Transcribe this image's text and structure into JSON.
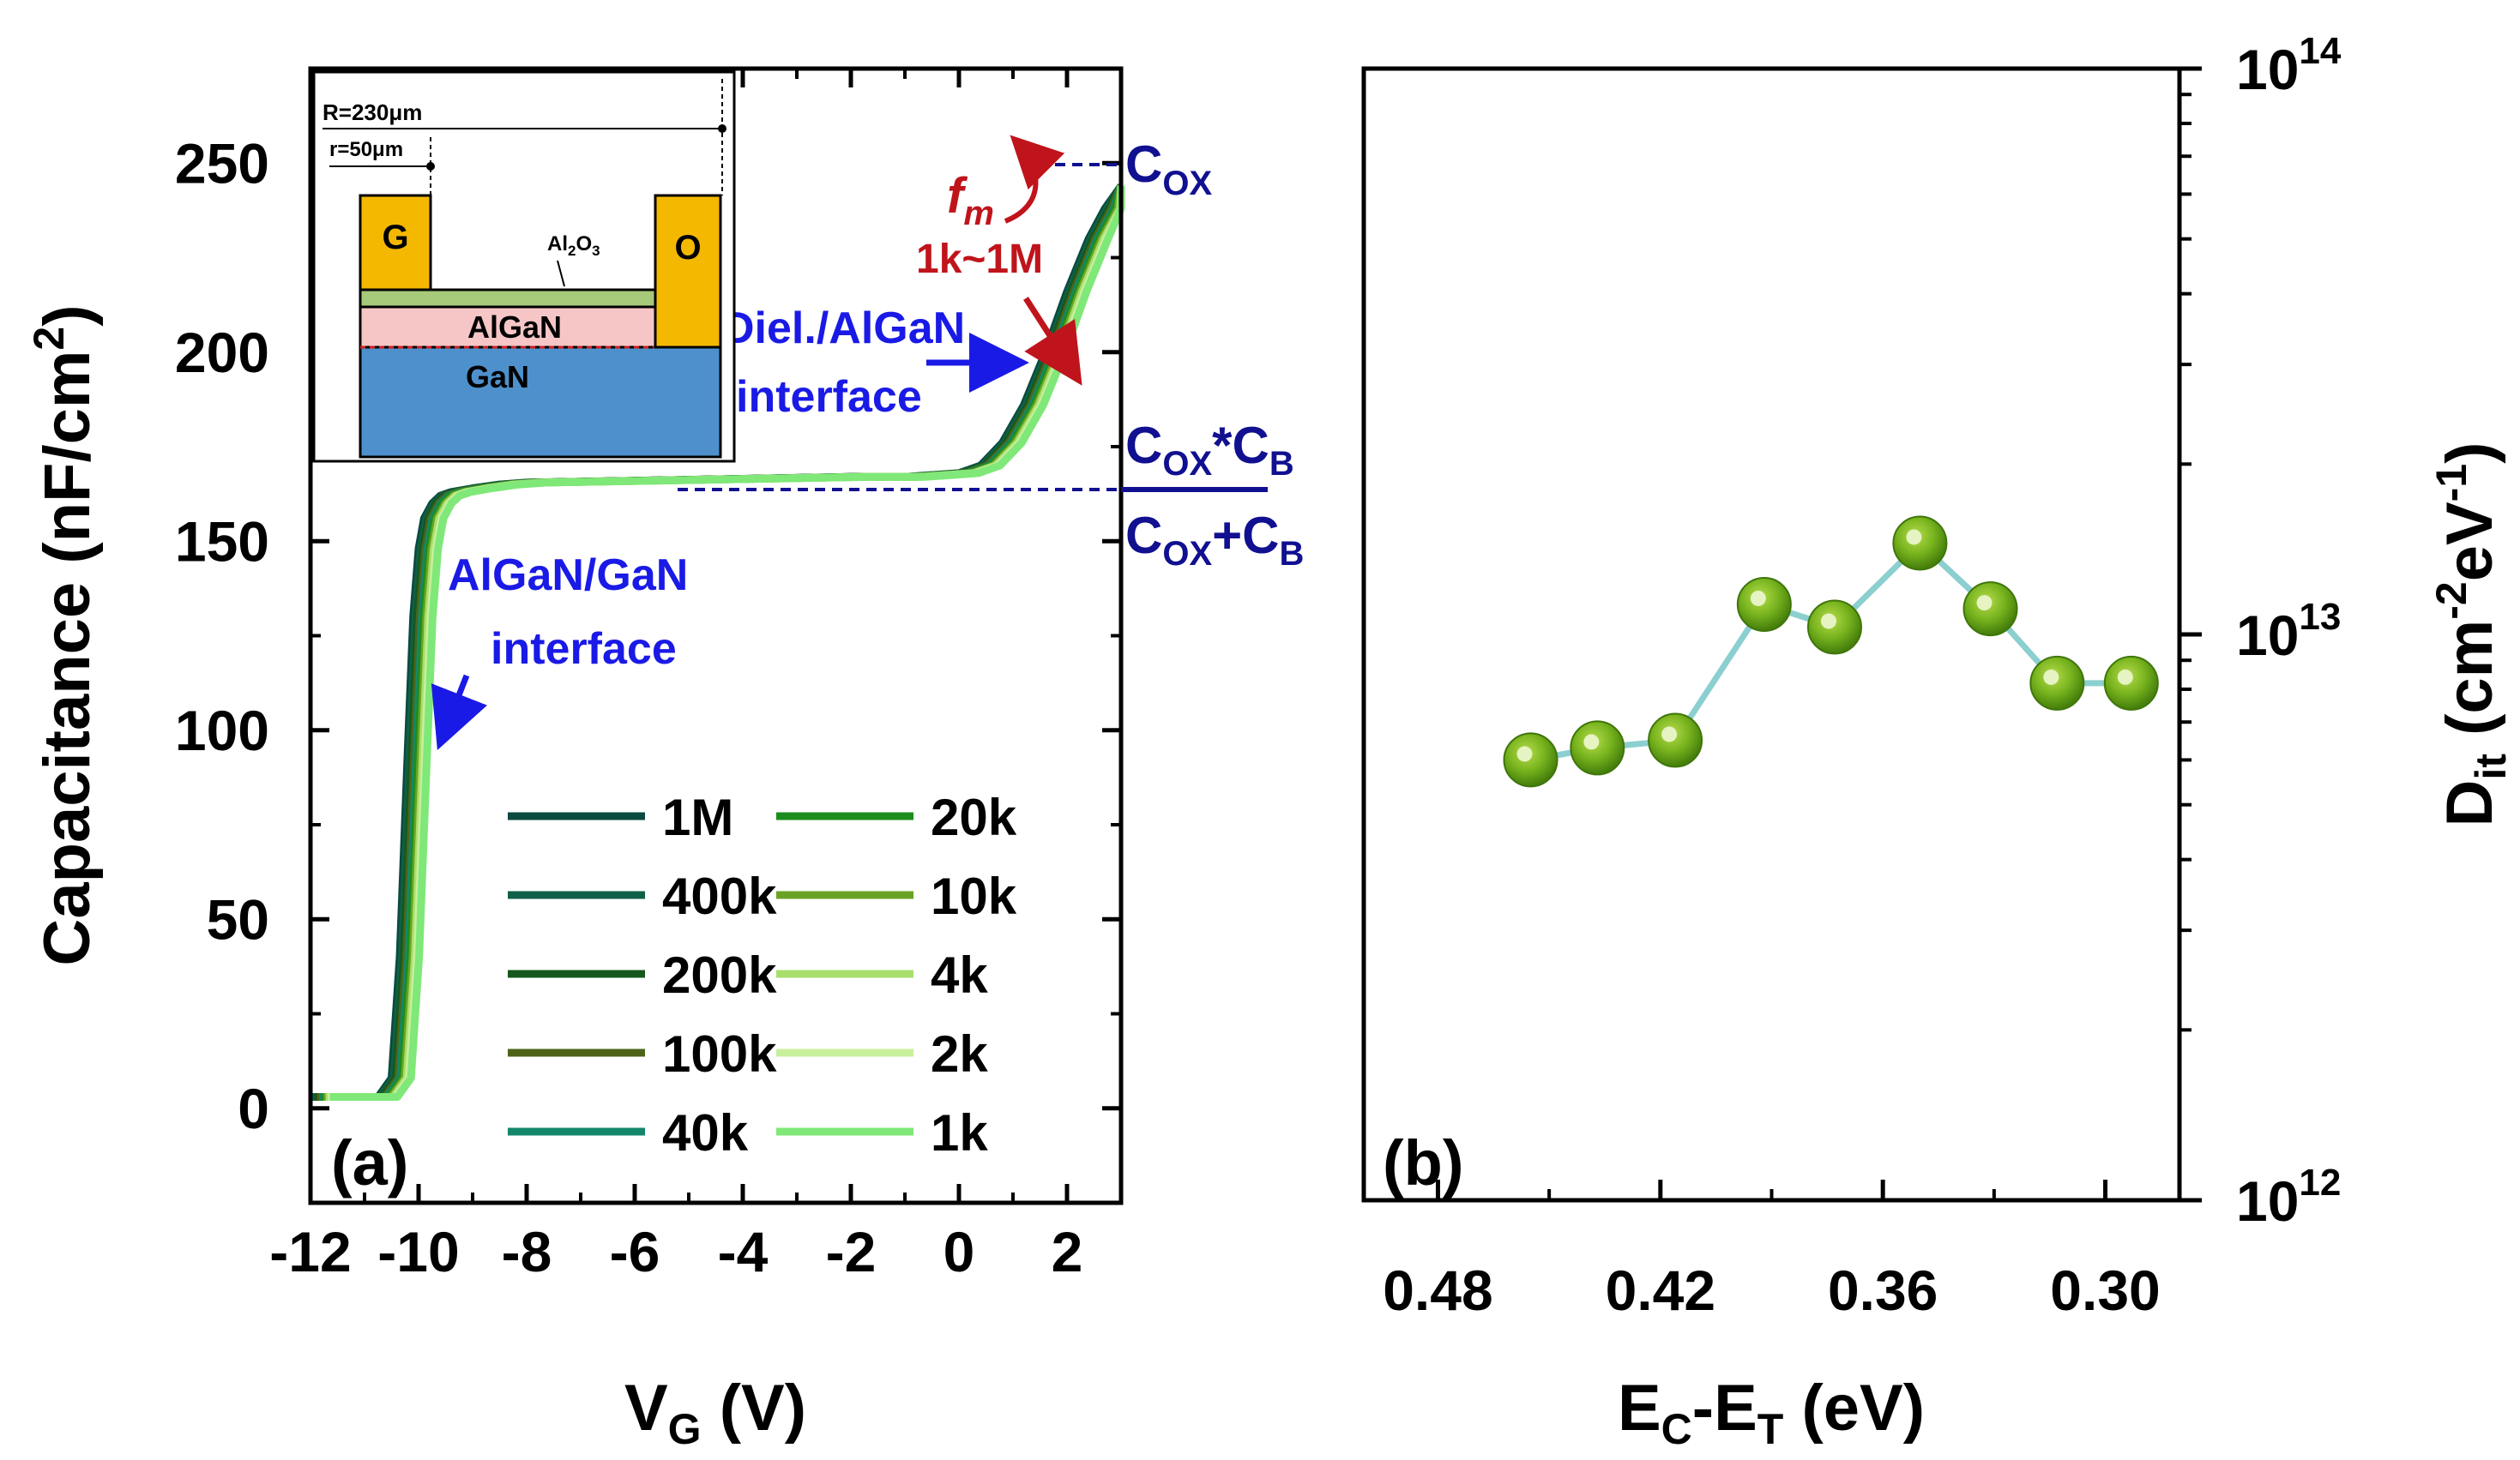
{
  "colors": {
    "axis": "#000000",
    "annotation_blue": "#1a1ae6",
    "annotation_red": "#c0141c",
    "cox_navy": "#101090",
    "substrate_gan": "#4e90cc",
    "algan_layer": "#f6c6c6",
    "al2o3_layer": "#a7c97a",
    "contact_gold": "#f5b800",
    "dit_marker": "#6aa518",
    "dit_line": "#8ccfd0"
  },
  "chart_data": [
    {
      "panel": "(a)",
      "type": "line",
      "title": "",
      "xlabel": "V",
      "xlabel_sub": "G",
      "xlabel_unit": " (V)",
      "ylabel": "Capacitance (nF/cm",
      "ylabel_sup": "2",
      "ylabel_end": ")",
      "xlim": [
        -12,
        3
      ],
      "ylim": [
        -25,
        275
      ],
      "xticks": [
        -12,
        -10,
        -8,
        -6,
        -4,
        -2,
        0,
        2
      ],
      "xtick_labels": [
        "-12",
        "-10",
        "-8",
        "-6",
        "-4",
        "-2",
        "0",
        "2"
      ],
      "yticks": [
        0,
        50,
        100,
        150,
        200,
        250
      ],
      "ytick_labels": [
        "0",
        "50",
        "100",
        "150",
        "200",
        "250"
      ],
      "x": [
        -12,
        -11.5,
        -11.0,
        -10.75,
        -10.5,
        -10.35,
        -10.2,
        -10.1,
        -10.0,
        -9.9,
        -9.75,
        -9.6,
        -9.4,
        -9.0,
        -8.5,
        -8,
        -6,
        -4,
        -2,
        -1,
        -0.5,
        0,
        0.4,
        0.8,
        1.2,
        1.6,
        2.0,
        2.4,
        2.7,
        3.0
      ],
      "series": [
        {
          "name": "1M",
          "color": "#0b4a3f",
          "shift": 0.0,
          "values": [
            3,
            3,
            3,
            3,
            8,
            40,
            95,
            130,
            148,
            156,
            160,
            162,
            163,
            164,
            165,
            165.5,
            166,
            166.5,
            167,
            167,
            167.5,
            168,
            170,
            176,
            186,
            200,
            216,
            230,
            238,
            244
          ]
        },
        {
          "name": "400k",
          "color": "#0f6048",
          "shift": 0.04,
          "values": [
            3,
            3,
            3,
            3,
            8,
            40,
            95,
            130,
            148,
            156,
            160,
            162,
            163,
            164,
            165,
            165.5,
            166,
            166.5,
            167,
            167,
            167.5,
            168,
            170,
            176,
            186,
            200,
            216,
            230,
            238,
            244
          ]
        },
        {
          "name": "200k",
          "color": "#15581d",
          "shift": 0.08,
          "values": [
            3,
            3,
            3,
            3,
            8,
            40,
            95,
            130,
            148,
            156,
            160,
            162,
            163,
            164,
            165,
            165.5,
            166,
            166.5,
            167,
            167,
            167.5,
            168,
            170,
            176,
            186,
            200,
            216,
            230,
            238,
            244
          ]
        },
        {
          "name": "100k",
          "color": "#4d6418",
          "shift": 0.12,
          "values": [
            3,
            3,
            3,
            3,
            8,
            40,
            95,
            130,
            148,
            156,
            160,
            162,
            163,
            164,
            165,
            165.5,
            166,
            166.5,
            167,
            167,
            167.5,
            168,
            170,
            176,
            186,
            200,
            216,
            230,
            238,
            244
          ]
        },
        {
          "name": "40k",
          "color": "#14876a",
          "shift": 0.16,
          "values": [
            3,
            3,
            3,
            3,
            8,
            40,
            95,
            130,
            148,
            156,
            160,
            162,
            163,
            164,
            165,
            165.5,
            166,
            166.5,
            167,
            167,
            167.5,
            168,
            170,
            176,
            186,
            200,
            216,
            230,
            238,
            244
          ]
        },
        {
          "name": "20k",
          "color": "#1c8d1c",
          "shift": 0.2,
          "values": [
            3,
            3,
            3,
            3,
            8,
            40,
            95,
            130,
            148,
            156,
            160,
            162,
            163,
            164,
            165,
            165.5,
            166,
            166.5,
            167,
            167,
            167.5,
            168,
            170,
            176,
            186,
            200,
            216,
            230,
            238,
            244
          ]
        },
        {
          "name": "10k",
          "color": "#6aa323",
          "shift": 0.24,
          "values": [
            3,
            3,
            3,
            3,
            8,
            40,
            95,
            130,
            148,
            156,
            160,
            162,
            163,
            164,
            165,
            165.5,
            166,
            166.5,
            167,
            167,
            167.5,
            168,
            170,
            176,
            186,
            200,
            216,
            230,
            238,
            244
          ]
        },
        {
          "name": "4k",
          "color": "#a8df6c",
          "shift": 0.28,
          "values": [
            3,
            3,
            3,
            3,
            8,
            40,
            95,
            130,
            148,
            156,
            160,
            162,
            163,
            164,
            165,
            165.5,
            166,
            166.5,
            167,
            167,
            167.5,
            168,
            170,
            176,
            186,
            200,
            216,
            230,
            238,
            244
          ]
        },
        {
          "name": "2k",
          "color": "#c8ef9c",
          "shift": 0.32,
          "values": [
            3,
            3,
            3,
            3,
            8,
            40,
            95,
            130,
            148,
            156,
            160,
            162,
            163,
            164,
            165,
            165.5,
            166,
            166.5,
            167,
            167,
            167.5,
            168,
            170,
            176,
            186,
            200,
            216,
            230,
            238,
            244
          ]
        },
        {
          "name": "1k",
          "color": "#7fe878",
          "shift": 0.36,
          "values": [
            3,
            3,
            3,
            3,
            8,
            40,
            95,
            130,
            148,
            156,
            160,
            162,
            163,
            164,
            165,
            165.5,
            166,
            166.5,
            167,
            167,
            167.5,
            168,
            170,
            176,
            186,
            200,
            216,
            230,
            238,
            244
          ]
        }
      ],
      "annotations": {
        "cox": "C",
        "cox_sub": "OX",
        "cox_level": 250,
        "series_num_c1": "C",
        "series_num_s1": "OX",
        "series_num_mid": "*C",
        "series_num_s2": "B",
        "series_den_c1": "C",
        "series_den_s1": "OX",
        "series_den_mid": "+C",
        "series_den_s2": "B",
        "series_level": 165,
        "fm": "f",
        "fm_sub": "m",
        "freq_range": "1k~1M",
        "diel_line1": "Diel./AlGaN",
        "diel_line2": "interface",
        "algan_line1": "AlGaN/GaN",
        "algan_line2": "interface",
        "panel_label": "(a)"
      },
      "inset": {
        "R_label": "R=230μm",
        "r_label": "r=50μm",
        "gate": "G",
        "ohmic": "O",
        "oxide_main": "Al",
        "oxide_sub1": "2",
        "oxide_mid": "O",
        "oxide_sub2": "3",
        "barrier": "AlGaN",
        "substrate": "GaN"
      }
    },
    {
      "panel": "(b)",
      "type": "scatter",
      "title": "",
      "xlabel": "E",
      "xlabel_sub1": "C",
      "xlabel_mid": "-E",
      "xlabel_sub2": "T",
      "xlabel_unit": " (eV)",
      "ylabel": "D",
      "ylabel_sub": "it",
      "ylabel_unit": " (cm",
      "ylabel_sup1": "-2",
      "ylabel_mid": "eV",
      "ylabel_sup2": "-1",
      "ylabel_end": ")",
      "xlim": [
        0.5,
        0.28
      ],
      "ylim_log10": [
        12,
        14
      ],
      "xticks": [
        0.48,
        0.42,
        0.36,
        0.3
      ],
      "xtick_labels": [
        "0.48",
        "0.42",
        "0.36",
        "0.30"
      ],
      "ytick_base": "10",
      "ytick_exps": [
        "12",
        "13",
        "14"
      ],
      "x": [
        0.455,
        0.437,
        0.416,
        0.392,
        0.373,
        0.35,
        0.331,
        0.313,
        0.293
      ],
      "y": [
        6000000000000.0,
        6300000000000.0,
        6500000000000.0,
        11300000000000.0,
        10300000000000.0,
        14500000000000.0,
        11100000000000.0,
        8200000000000.0,
        8200000000000.0
      ],
      "panel_label": "(b)"
    }
  ]
}
